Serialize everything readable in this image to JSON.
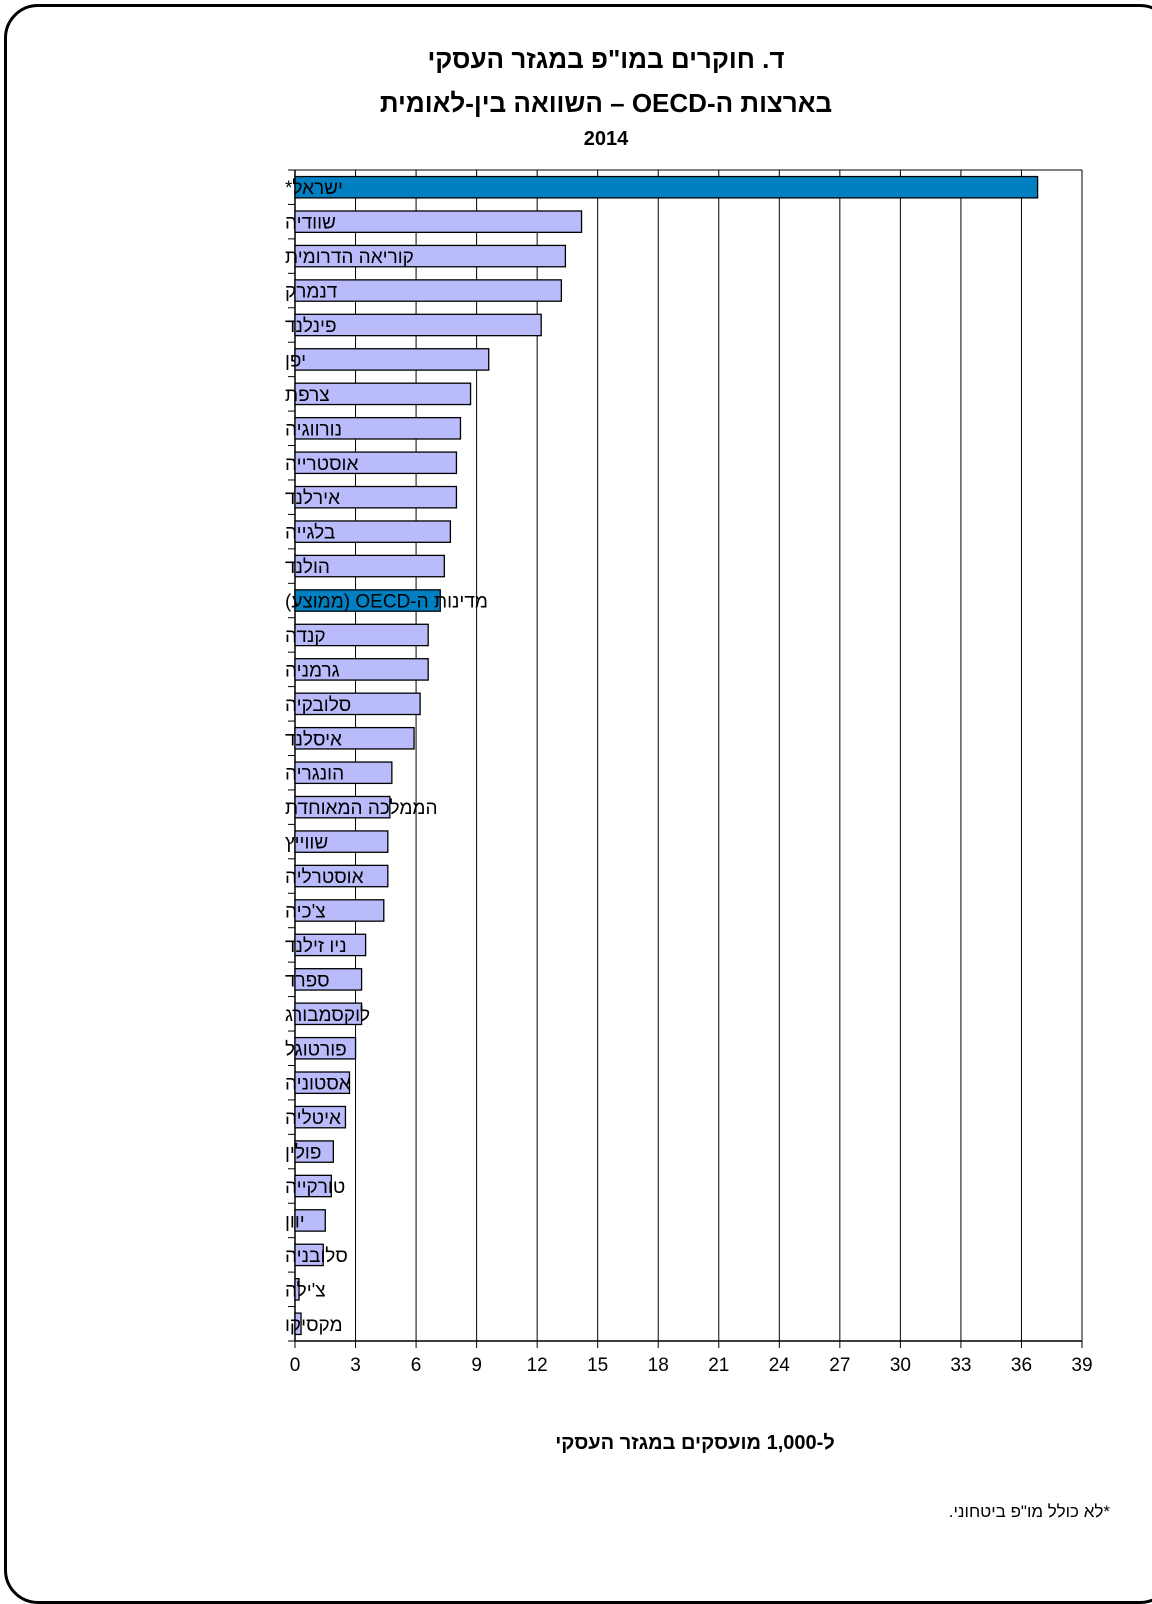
{
  "title_line1": "ד. חוקרים במו\"פ במגזר העסקי",
  "title_line2": "בארצות ה-OECD – השוואה בין-לאומית",
  "title_line3": "2014",
  "footnote": "*לא כולל מו\"פ ביטחוני.",
  "colors": {
    "default_bar": "#B9BBFA",
    "highlight_bar": "#0080C0",
    "border": "#000000"
  },
  "chart_data": {
    "type": "bar",
    "orientation": "horizontal",
    "categories": [
      "ישראל*",
      "שוודיה",
      "קוריאה הדרומית",
      "דנמרק",
      "פינלנד",
      "יפן",
      "צרפת",
      "נורווגיה",
      "אוסטרייה",
      "אירלנד",
      "בלגייה",
      "הולנד",
      "מדינות ה-OECD (ממוצע)",
      "קנדה",
      "גרמניה",
      "סלובקיה",
      "איסלנד",
      "הונגריה",
      "הממלכה המאוחדת",
      "שווייץ",
      "אוסטרליה",
      "צ'כיה",
      "ניו זילנד",
      "ספרד",
      "לוקסמבורג",
      "פורטוגל",
      "אסטוניה",
      "איטליה",
      "פולין",
      "טורקייה",
      "יוון",
      "סלובניה",
      "צ'ילה",
      "מקסיקו"
    ],
    "values": [
      36.8,
      14.2,
      13.4,
      13.2,
      12.2,
      9.6,
      8.7,
      8.2,
      8.0,
      8.0,
      7.7,
      7.4,
      7.2,
      6.6,
      6.6,
      6.2,
      5.9,
      4.8,
      4.7,
      4.6,
      4.6,
      4.4,
      3.5,
      3.3,
      3.3,
      3.0,
      2.7,
      2.5,
      1.9,
      1.8,
      1.5,
      1.4,
      0.2,
      0.3
    ],
    "highlighted": [
      "ישראל*",
      "מדינות ה-OECD (ממוצע)"
    ],
    "xlabel": "ל-1,000 מועסקים במגזר העסקי",
    "ylabel": "",
    "xlim": [
      0,
      39
    ],
    "xticks": [
      0,
      3,
      6,
      9,
      12,
      15,
      18,
      21,
      24,
      27,
      30,
      33,
      36,
      39
    ],
    "grid": true
  }
}
